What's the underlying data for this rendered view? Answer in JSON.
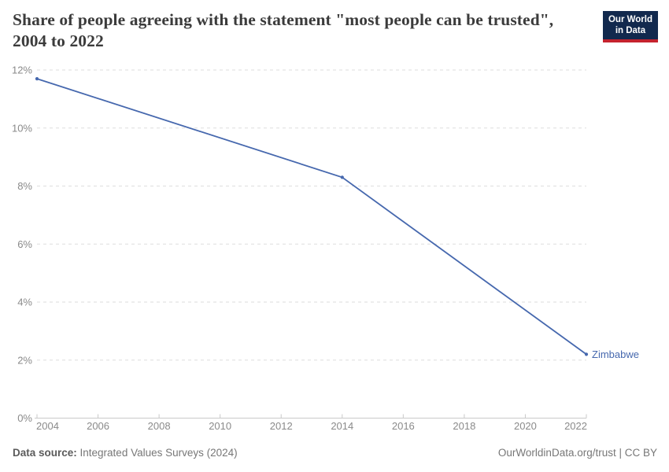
{
  "header": {
    "title": "Share of people agreeing with the statement \"most people can be trusted\", 2004 to 2022"
  },
  "logo": {
    "line1": "Our World",
    "line2": "in Data",
    "bg_color": "#12294e",
    "accent_color": "#c4232e"
  },
  "chart_data": {
    "type": "line",
    "title": "Share of people agreeing with the statement \"most people can be trusted\", 2004 to 2022",
    "series": [
      {
        "name": "Zimbabwe",
        "color": "#4668ae",
        "points": [
          {
            "x": 2004,
            "y": 11.7
          },
          {
            "x": 2014,
            "y": 8.3
          },
          {
            "x": 2022,
            "y": 2.2
          }
        ]
      }
    ],
    "xlim": [
      2004,
      2022
    ],
    "ylim": [
      0,
      12
    ],
    "x_ticks": [
      2004,
      2006,
      2008,
      2010,
      2012,
      2014,
      2016,
      2018,
      2020,
      2022
    ],
    "y_ticks": [
      0,
      2,
      4,
      6,
      8,
      10,
      12
    ],
    "y_tick_format": "{}%",
    "xlabel": "",
    "ylabel": "",
    "grid": "horizontal-dashed",
    "legend_position": "end-of-line-label"
  },
  "footer": {
    "datasource_label": "Data source:",
    "datasource_value": " Integrated Values Surveys (2024)",
    "credit": "OurWorldinData.org/trust | CC BY"
  }
}
